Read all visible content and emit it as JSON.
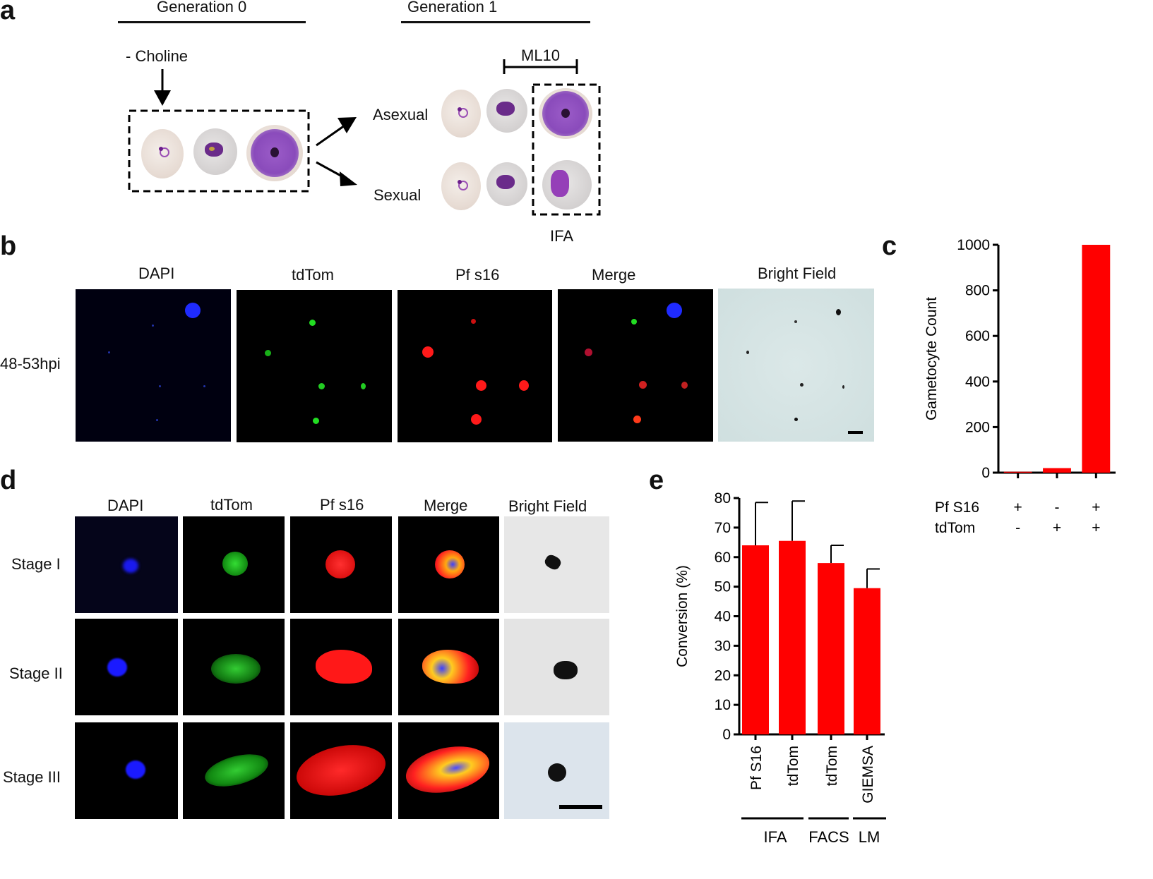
{
  "panels": {
    "a": {
      "letter": "a",
      "gen0": "Generation  0",
      "gen1": "Generation  1",
      "choline": "- Choline",
      "ml10": "ML10",
      "asexual": "Asexual",
      "sexual": "Sexual",
      "ifa": "IFA"
    },
    "b": {
      "letter": "b",
      "columns": [
        "DAPI",
        "tdTom",
        "Pf s16",
        "Merge",
        "Bright Field"
      ],
      "row_label": "48-53hpi"
    },
    "c": {
      "letter": "c"
    },
    "d": {
      "letter": "d",
      "columns": [
        "DAPI",
        "tdTom",
        "Pf s16",
        "Merge",
        "Bright Field"
      ],
      "rows": [
        "Stage I",
        "Stage II",
        "Stage III"
      ]
    },
    "e": {
      "letter": "e"
    }
  },
  "colors": {
    "bar": "#ff0000",
    "axis": "#000000",
    "dapi": "#1a1aff",
    "tdtom": "#22dd22",
    "pfs16": "#ff1a1a"
  },
  "chart_data": [
    {
      "id": "c",
      "type": "bar",
      "ylabel": "Gametocyte Count",
      "ylim": [
        0,
        1000
      ],
      "yticks": [
        0,
        200,
        400,
        600,
        800,
        1000
      ],
      "row_labels": [
        "Pf S16",
        "tdTom"
      ],
      "categories": [
        [
          "+",
          "-"
        ],
        [
          "-",
          "+"
        ],
        [
          "+",
          "+"
        ]
      ],
      "values": [
        4,
        20,
        1000
      ],
      "grid": false,
      "legend": "none"
    },
    {
      "id": "e",
      "type": "bar",
      "ylabel": "Conversion (%)",
      "ylim": [
        0,
        80
      ],
      "yticks": [
        0,
        10,
        20,
        30,
        40,
        50,
        60,
        70,
        80
      ],
      "categories": [
        "Pf S16",
        "tdTom",
        "tdTom",
        "GIEMSA"
      ],
      "values": [
        64,
        65.5,
        58,
        49.5
      ],
      "errors": [
        14.5,
        13.5,
        6,
        6.5
      ],
      "groups": [
        {
          "label": "IFA",
          "members": [
            0,
            1
          ]
        },
        {
          "label": "FACS",
          "members": [
            2
          ]
        },
        {
          "label": "LM",
          "members": [
            3
          ]
        }
      ],
      "grid": false,
      "legend": "none"
    }
  ]
}
